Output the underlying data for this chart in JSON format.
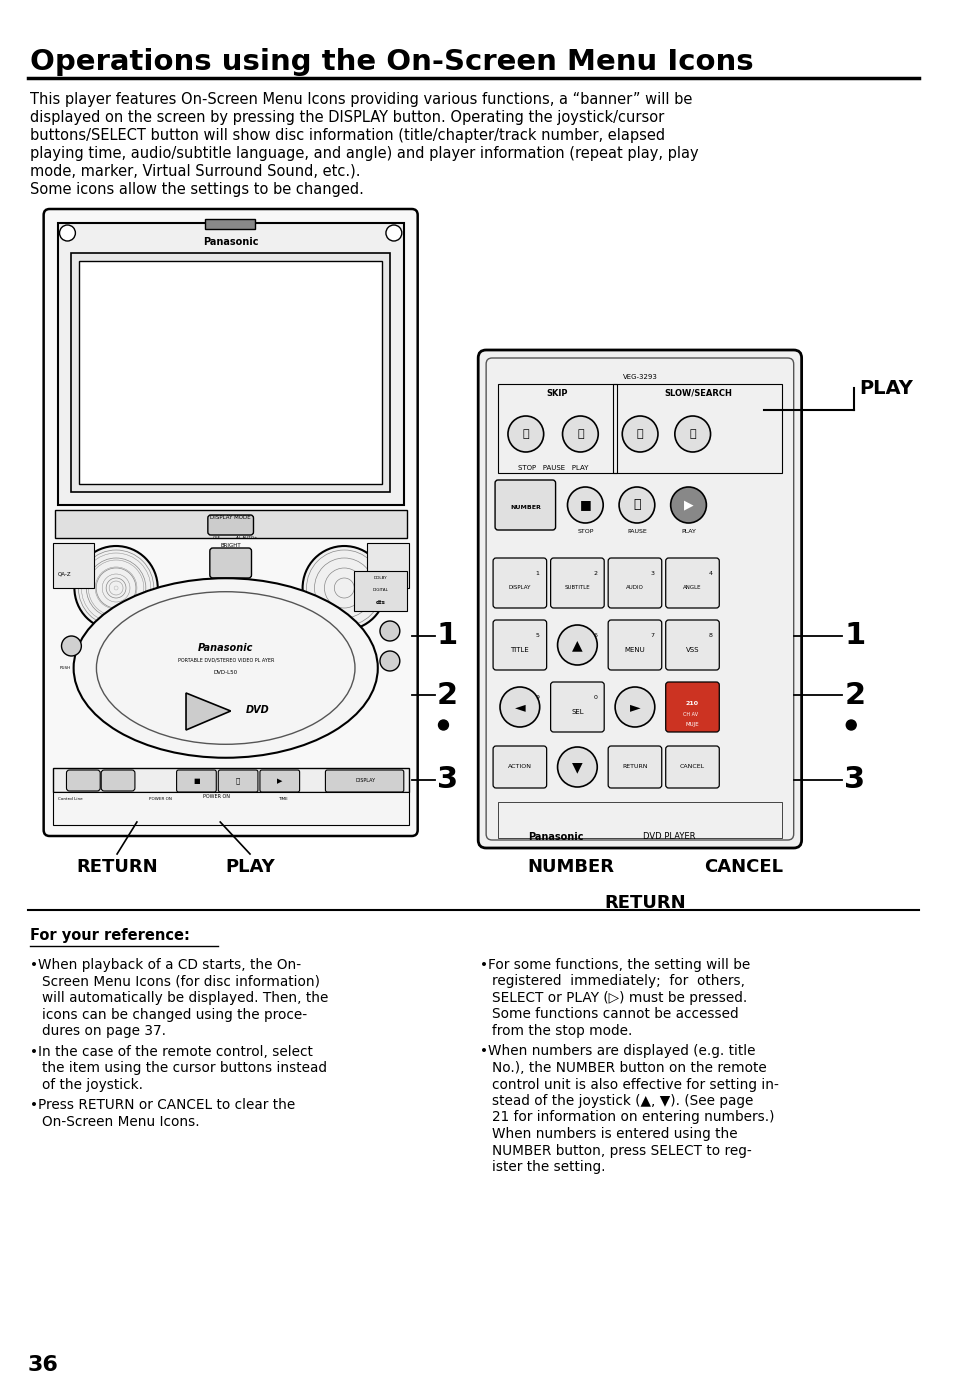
{
  "title": "Operations using the On-Screen Menu Icons",
  "bg_color": "#ffffff",
  "title_fontsize": 20,
  "body_fontsize": 10.5,
  "intro_text": "This player features On-Screen Menu Icons providing various functions, a “banner” will be\ndisplayed on the screen by pressing the DISPLAY button. Operating the joystick/cursor\nbuttons/SELECT button will show disc information (title/chapter/track number, elapsed\nplaying time, audio/subtitle language, and angle) and player information (repeat play, play\nmode, marker, Virtual Surround Sound, etc.).\nSome icons allow the settings to be changed.",
  "for_ref_label": "For your reference:",
  "page_number": "36"
}
